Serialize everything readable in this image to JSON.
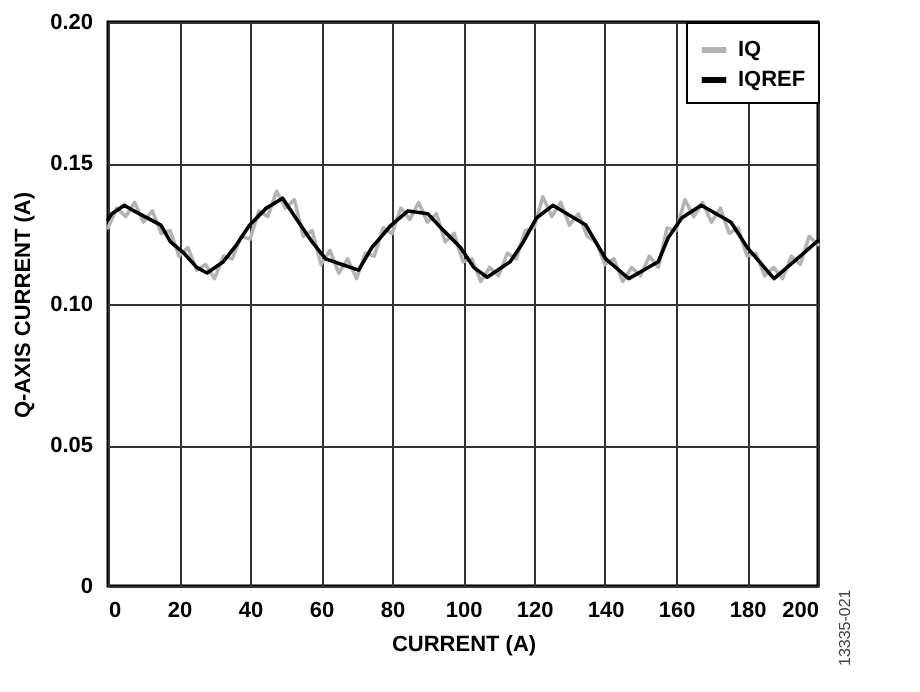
{
  "chart_data": {
    "type": "line",
    "xlabel": "CURRENT (A)",
    "ylabel": "Q-AXIS CURRENT (A)",
    "xlim": [
      0,
      200
    ],
    "xticks": [
      0,
      20,
      40,
      60,
      80,
      100,
      120,
      140,
      160,
      180,
      200
    ],
    "ylim": [
      0,
      0.2
    ],
    "yticks": [
      0,
      0.05,
      {
        "value": 0.1,
        "label": "0.10"
      },
      0.15,
      {
        "value": 0.2,
        "label": "0.20"
      }
    ],
    "grid": true,
    "legend": "top right",
    "line_style": "solid",
    "marker": "none",
    "annotations": [
      "13335-021"
    ],
    "series": [
      {
        "name": "IQ",
        "color": "#b3b3b3",
        "x": [
          0,
          2.5,
          5,
          7.5,
          10,
          12.5,
          15,
          17.5,
          20,
          22.5,
          25,
          27.5,
          30,
          32.5,
          35,
          37.5,
          40,
          42.5,
          45,
          47.5,
          50,
          52.5,
          55,
          57.5,
          60,
          62.5,
          65,
          67.5,
          70,
          72.5,
          75,
          77.5,
          80,
          82.5,
          85,
          87.5,
          90,
          92.5,
          95,
          97.5,
          100,
          102.5,
          105,
          107.5,
          110,
          112.5,
          115,
          117.5,
          120,
          122.5,
          125,
          127.5,
          130,
          132.5,
          135,
          137.5,
          140,
          142.5,
          145,
          147.5,
          150,
          152.5,
          155,
          157.5,
          160,
          162.5,
          165,
          167.5,
          170,
          172.5,
          175,
          177.5,
          180,
          182.5,
          185,
          187.5,
          190,
          192.5,
          195,
          197.5,
          200
        ],
        "values": [
          0.127,
          0.134,
          0.131,
          0.136,
          0.129,
          0.133,
          0.125,
          0.126,
          0.117,
          0.12,
          0.112,
          0.114,
          0.109,
          0.117,
          0.116,
          0.124,
          0.123,
          0.133,
          0.131,
          0.14,
          0.134,
          0.137,
          0.124,
          0.126,
          0.114,
          0.119,
          0.111,
          0.116,
          0.109,
          0.118,
          0.117,
          0.127,
          0.125,
          0.134,
          0.13,
          0.136,
          0.129,
          0.132,
          0.122,
          0.125,
          0.115,
          0.116,
          0.108,
          0.113,
          0.11,
          0.118,
          0.116,
          0.126,
          0.127,
          0.138,
          0.131,
          0.136,
          0.128,
          0.132,
          0.124,
          0.122,
          0.114,
          0.116,
          0.108,
          0.113,
          0.11,
          0.117,
          0.113,
          0.127,
          0.126,
          0.137,
          0.131,
          0.136,
          0.129,
          0.134,
          0.125,
          0.127,
          0.117,
          0.118,
          0.11,
          0.113,
          0.109,
          0.117,
          0.114,
          0.124,
          0.121
        ]
      },
      {
        "name": "IQREF",
        "color": "#000000",
        "x": [
          0,
          1.1,
          4.6,
          7.3,
          14.9,
          17.6,
          21.4,
          25,
          27.9,
          32.5,
          36.2,
          39.9,
          44.6,
          49.2,
          52.9,
          57.5,
          61.3,
          65.9,
          70.6,
          74.3,
          79.8,
          84.5,
          90.1,
          93.8,
          99.3,
          103,
          106.8,
          113.3,
          117,
          120.7,
          125.3,
          134.6,
          140.2,
          146.7,
          155,
          157.8,
          161.6,
          167.1,
          175.5,
          180.1,
          187.6,
          193.2,
          200
        ],
        "values": [
          0.13,
          0.132,
          0.135,
          0.133,
          0.128,
          0.122,
          0.118,
          0.113,
          0.111,
          0.115,
          0.121,
          0.128,
          0.134,
          0.1375,
          0.1305,
          0.122,
          0.116,
          0.114,
          0.112,
          0.12,
          0.128,
          0.133,
          0.132,
          0.127,
          0.12,
          0.113,
          0.1095,
          0.115,
          0.122,
          0.1305,
          0.135,
          0.128,
          0.116,
          0.109,
          0.115,
          0.1235,
          0.1305,
          0.135,
          0.129,
          0.12,
          0.109,
          0.115,
          0.1225
        ]
      }
    ]
  }
}
